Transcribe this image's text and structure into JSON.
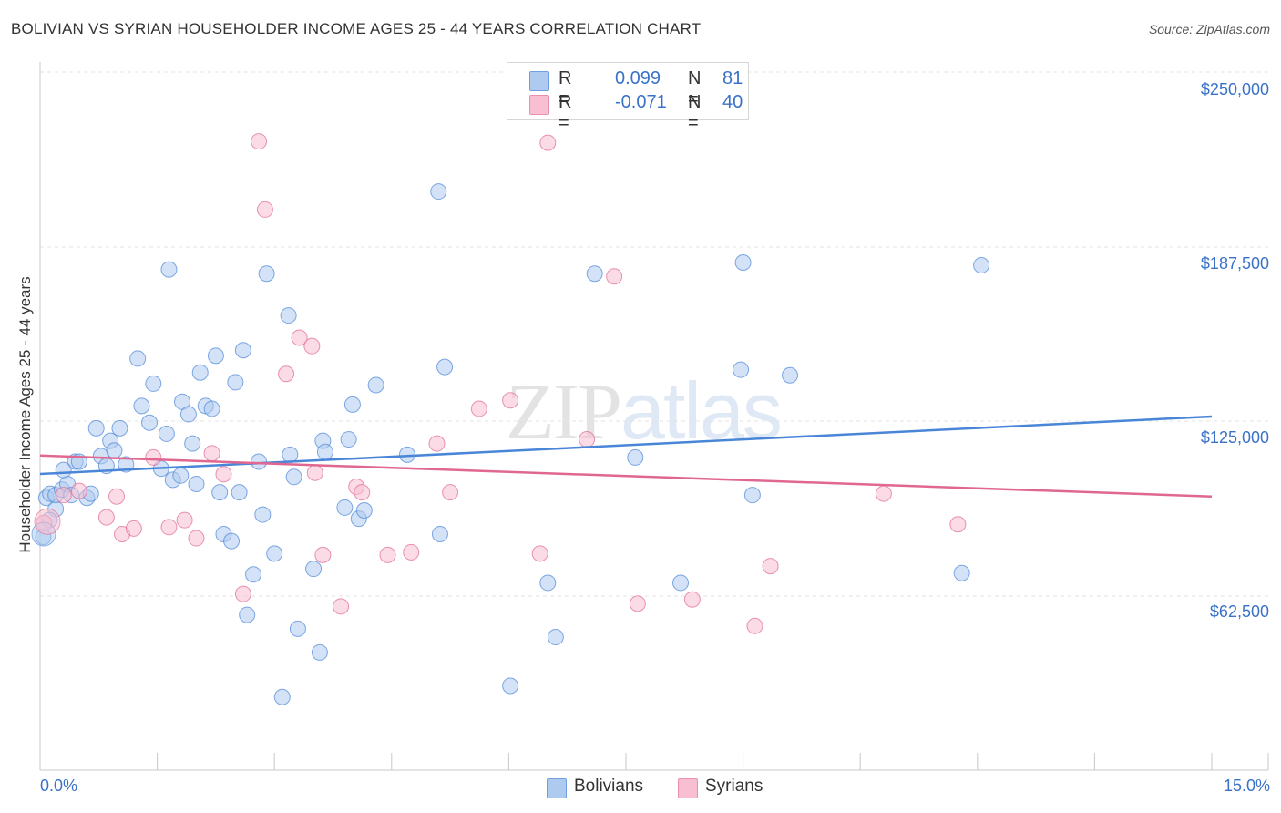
{
  "title": "BOLIVIAN VS SYRIAN HOUSEHOLDER INCOME AGES 25 - 44 YEARS CORRELATION CHART",
  "source": "Source: ZipAtlas.com",
  "watermark": {
    "zip": "ZIP",
    "atlas": "atlas"
  },
  "legend": {
    "rows": [
      {
        "r_label": "R =",
        "r_value": "0.099",
        "n_label": "N =",
        "n_value": "81",
        "color": "#aecbef"
      },
      {
        "r_label": "R =",
        "r_value": "-0.071",
        "n_label": "N =",
        "n_value": "40",
        "color": "#f7bfd1"
      }
    ]
  },
  "bottom_legend": [
    {
      "label": "Bolivians",
      "color": "#aecbef"
    },
    {
      "label": "Syrians",
      "color": "#f7bfd1"
    }
  ],
  "x_axis": {
    "min_label": "0.0%",
    "max_label": "15.0%"
  },
  "y_axis_label": "Householder Income Ages 25 - 44 years",
  "chart_data": {
    "type": "scatter",
    "title": "BOLIVIAN VS SYRIAN HOUSEHOLDER INCOME AGES 25 - 44 YEARS CORRELATION CHART",
    "xlabel": "",
    "ylabel": "Householder Income Ages 25 - 44 years",
    "xlim": [
      0,
      15
    ],
    "ylim": [
      8000,
      258000
    ],
    "y_ticks": [
      62500,
      125000,
      187500,
      250000
    ],
    "y_tick_labels": [
      "$62,500",
      "$125,000",
      "$187,500",
      "$250,000"
    ],
    "grid": true,
    "legend_placement": "top-center",
    "series": [
      {
        "name": "Bolivians",
        "color": "#4a86d8",
        "fill": "#aecbef",
        "trend": {
          "x": [
            0,
            15
          ],
          "y": [
            111600,
            132200
          ]
        },
        "points": [
          [
            0.08,
            103.0
          ],
          [
            0.13,
            104.5
          ],
          [
            0.2,
            99.0
          ],
          [
            0.2,
            104.0
          ],
          [
            0.28,
            106.0
          ],
          [
            0.35,
            108.0
          ],
          [
            0.4,
            104.0
          ],
          [
            0.45,
            116.0
          ],
          [
            0.5,
            116.0
          ],
          [
            0.6,
            103.0
          ],
          [
            0.65,
            104.5
          ],
          [
            0.72,
            128.0
          ],
          [
            0.78,
            118.0
          ],
          [
            0.85,
            114.5
          ],
          [
            0.9,
            123.5
          ],
          [
            0.95,
            120.0
          ],
          [
            1.02,
            128.0
          ],
          [
            1.1,
            115.0
          ],
          [
            1.25,
            153.0
          ],
          [
            1.3,
            136.0
          ],
          [
            1.4,
            130.0
          ],
          [
            1.45,
            144.0
          ],
          [
            1.55,
            113.5
          ],
          [
            1.62,
            126.0
          ],
          [
            1.65,
            185.0
          ],
          [
            1.7,
            109.5
          ],
          [
            1.8,
            111.0
          ],
          [
            1.82,
            137.5
          ],
          [
            1.9,
            133.0
          ],
          [
            1.95,
            122.5
          ],
          [
            2.0,
            108.0
          ],
          [
            2.05,
            148.0
          ],
          [
            2.12,
            136.0
          ],
          [
            2.2,
            135.0
          ],
          [
            2.25,
            154.0
          ],
          [
            2.3,
            105.0
          ],
          [
            2.35,
            90.0
          ],
          [
            2.45,
            87.5
          ],
          [
            2.5,
            144.5
          ],
          [
            2.55,
            105.0
          ],
          [
            2.6,
            156.0
          ],
          [
            2.65,
            61.0
          ],
          [
            2.73,
            75.5
          ],
          [
            2.8,
            116.0
          ],
          [
            2.85,
            97.0
          ],
          [
            2.9,
            183.5
          ],
          [
            3.0,
            83.0
          ],
          [
            3.1,
            31.5
          ],
          [
            3.18,
            168.5
          ],
          [
            3.2,
            118.5
          ],
          [
            3.25,
            110.5
          ],
          [
            3.3,
            56.0
          ],
          [
            3.5,
            77.5
          ],
          [
            3.58,
            47.5
          ],
          [
            3.62,
            123.5
          ],
          [
            3.65,
            119.5
          ],
          [
            3.9,
            99.5
          ],
          [
            3.95,
            124.0
          ],
          [
            4.0,
            136.5
          ],
          [
            4.08,
            95.5
          ],
          [
            4.15,
            98.5
          ],
          [
            4.3,
            143.5
          ],
          [
            4.7,
            118.5
          ],
          [
            5.1,
            213.0
          ],
          [
            5.12,
            90.0
          ],
          [
            5.18,
            150.0
          ],
          [
            6.02,
            35.5
          ],
          [
            6.5,
            72.5
          ],
          [
            6.6,
            53.0
          ],
          [
            7.1,
            183.5
          ],
          [
            7.62,
            117.5
          ],
          [
            8.2,
            72.5
          ],
          [
            8.97,
            149.0
          ],
          [
            9.0,
            187.5
          ],
          [
            9.12,
            104.0
          ],
          [
            9.6,
            147.0
          ],
          [
            11.8,
            76.0
          ],
          [
            12.05,
            186.5
          ],
          [
            0.04,
            89.0
          ],
          [
            0.12,
            95.0
          ],
          [
            0.3,
            113.0
          ]
        ]
      },
      {
        "name": "Syrians",
        "color": "#e06890",
        "fill": "#f7bfd1",
        "trend": {
          "x": [
            0,
            15
          ],
          "y": [
            118200,
            103500
          ]
        },
        "points": [
          [
            0.05,
            94.0
          ],
          [
            0.3,
            104.0
          ],
          [
            0.5,
            105.5
          ],
          [
            0.85,
            96.0
          ],
          [
            0.98,
            103.5
          ],
          [
            1.05,
            90.0
          ],
          [
            1.2,
            92.0
          ],
          [
            1.45,
            117.5
          ],
          [
            1.65,
            92.5
          ],
          [
            1.85,
            95.0
          ],
          [
            2.0,
            88.5
          ],
          [
            2.2,
            119.0
          ],
          [
            2.35,
            111.5
          ],
          [
            2.6,
            68.5
          ],
          [
            2.8,
            231.0
          ],
          [
            2.88,
            206.5
          ],
          [
            3.15,
            147.5
          ],
          [
            3.32,
            160.5
          ],
          [
            3.48,
            157.5
          ],
          [
            3.52,
            112.0
          ],
          [
            3.62,
            82.5
          ],
          [
            3.85,
            64.0
          ],
          [
            4.05,
            107.0
          ],
          [
            4.12,
            105.0
          ],
          [
            4.45,
            82.5
          ],
          [
            4.75,
            83.5
          ],
          [
            5.08,
            122.5
          ],
          [
            5.25,
            105.0
          ],
          [
            5.62,
            135.0
          ],
          [
            6.02,
            138.0
          ],
          [
            6.4,
            83.0
          ],
          [
            6.5,
            230.5
          ],
          [
            7.0,
            124.0
          ],
          [
            7.35,
            182.5
          ],
          [
            7.65,
            65.0
          ],
          [
            8.35,
            66.5
          ],
          [
            9.15,
            57.0
          ],
          [
            9.35,
            78.5
          ],
          [
            10.8,
            104.5
          ],
          [
            11.75,
            93.5
          ]
        ]
      }
    ],
    "y_values_unit": "thousands of dollars"
  }
}
